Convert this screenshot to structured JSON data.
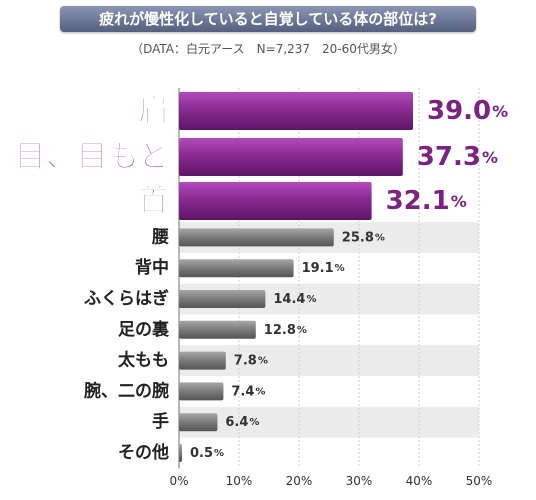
{
  "chart_data": {
    "type": "bar",
    "orientation": "horizontal",
    "title": "疲れが慢性化していると自覚している体の部位は?",
    "subtitle": "（DATA：白元アース　N=7,237　20-60代男女）",
    "categories": [
      "肩",
      "目、目もと",
      "首",
      "腰",
      "背中",
      "ふくらはぎ",
      "足の裏",
      "太もも",
      "腕、二の腕",
      "手",
      "その他"
    ],
    "values": [
      39.0,
      37.3,
      32.1,
      25.8,
      19.1,
      14.4,
      12.8,
      7.8,
      7.4,
      6.4,
      0.5
    ],
    "value_labels": [
      "39.0",
      "37.3",
      "32.1",
      "25.8",
      "19.1",
      "14.4",
      "12.8",
      "7.8",
      "7.4",
      "6.4",
      "0.5"
    ],
    "unit": "%",
    "highlight_count": 3,
    "xlim": [
      0,
      50
    ],
    "xticks": [
      "0%",
      "10%",
      "20%",
      "30%",
      "40%",
      "50%"
    ],
    "grid": true,
    "colors": {
      "highlight": "#8a2a92",
      "normal": "#7a7a7a",
      "highlight_text": "#7b2283",
      "stripe": "#ececec",
      "grid": "#cfcfcf"
    }
  }
}
